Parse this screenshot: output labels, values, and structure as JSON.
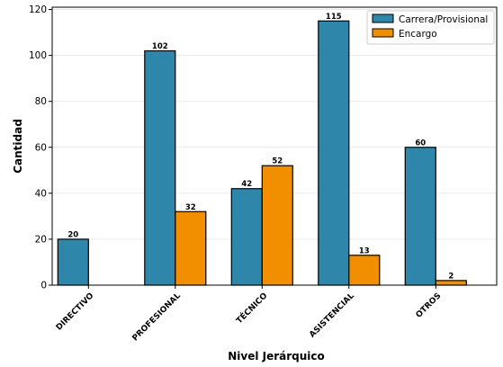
{
  "chart_data": {
    "type": "bar",
    "title": "",
    "xlabel": "Nivel Jerárquico",
    "ylabel": "Cantidad",
    "categories": [
      "DIRECTIVO",
      "PROFESIONAL",
      "TÉCNICO",
      "ASISTENCIAL",
      "OTROS"
    ],
    "series": [
      {
        "name": "Carrera/Provisional",
        "color": "#2e86ab",
        "values": [
          20,
          102,
          42,
          115,
          60
        ],
        "labels": [
          "20",
          "102",
          "42",
          "115",
          "60"
        ]
      },
      {
        "name": "Encargo",
        "color": "#f18f01",
        "values": [
          0,
          32,
          52,
          13,
          2
        ],
        "labels": [
          "",
          "32",
          "52",
          "13",
          "2"
        ]
      }
    ],
    "yticks": [
      "0",
      "20",
      "40",
      "60",
      "80",
      "100",
      "120"
    ],
    "ylim": [
      0,
      121
    ],
    "grid": "horizontal",
    "legend_position": "top-right"
  }
}
